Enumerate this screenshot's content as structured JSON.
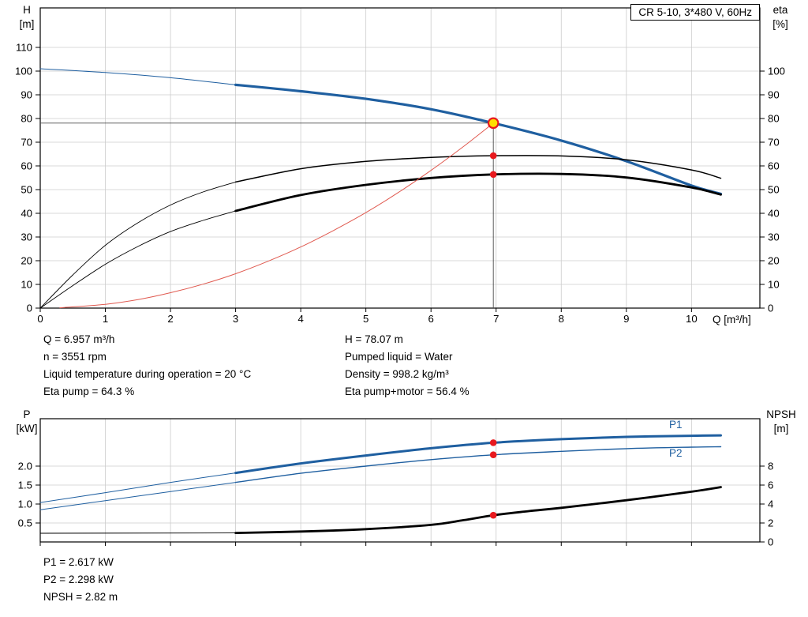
{
  "axis_labels": {
    "h": "H",
    "h_unit": "[m]",
    "eta": "eta",
    "eta_unit": "[%]",
    "q": "Q [m³/h]",
    "p": "P",
    "p_unit": "[kW]",
    "npsh": "NPSH",
    "npsh_unit": "[m]"
  },
  "curve_labels": {
    "p1": "P1",
    "p2": "P2"
  },
  "info_top": {
    "left": [
      "Q = 6.957 m³/h",
      "n = 3551 rpm",
      "Liquid temperature during operation = 20 °C",
      "Eta pump = 64.3 %"
    ],
    "right": [
      "H = 78.07 m",
      "Pumped liquid = Water",
      "Density = 998.2 kg/m³",
      "Eta pump+motor = 56.4 %"
    ]
  },
  "info_bottom": [
    "P1 = 2.617 kW",
    "P2 = 2.298 kW",
    "NPSH = 2.82 m"
  ],
  "colors": {
    "blue": "#1f5fa0",
    "black": "#000000",
    "red_curve": "#e05a50",
    "dot": "#e8191e",
    "marker_fill": "#ffdf00",
    "marker_ring": "#e8191e",
    "grid": "#cccccc",
    "crosshair": "#4d4d4d"
  },
  "chart_data": [
    {
      "id": "top",
      "type": "line",
      "title": "CR 5-10, 3*480 V, 60Hz",
      "xlabel": "Q [m³/h]",
      "left_axis_label": "H [m]",
      "right_axis_label": "eta [%]",
      "xlim": [
        0,
        11.05
      ],
      "left_lim": [
        0,
        126.7
      ],
      "right_lim": [
        0,
        126.7
      ],
      "show_x_labels": true,
      "x_ticks": [
        [
          0,
          "0"
        ],
        [
          1,
          "1"
        ],
        [
          2,
          "2"
        ],
        [
          3,
          "3"
        ],
        [
          4,
          "4"
        ],
        [
          5,
          "5"
        ],
        [
          6,
          "6"
        ],
        [
          7,
          "7"
        ],
        [
          8,
          "8"
        ],
        [
          9,
          "9"
        ],
        [
          10,
          "10"
        ]
      ],
      "left_ticks": [
        [
          0,
          "0"
        ],
        [
          10,
          "10"
        ],
        [
          20,
          "20"
        ],
        [
          30,
          "30"
        ],
        [
          40,
          "40"
        ],
        [
          50,
          "50"
        ],
        [
          60,
          "60"
        ],
        [
          70,
          "70"
        ],
        [
          80,
          "80"
        ],
        [
          90,
          "90"
        ],
        [
          100,
          "100"
        ],
        [
          110,
          "110"
        ]
      ],
      "right_ticks": [
        [
          0,
          "0"
        ],
        [
          10,
          "10"
        ],
        [
          20,
          "20"
        ],
        [
          30,
          "30"
        ],
        [
          40,
          "40"
        ],
        [
          50,
          "50"
        ],
        [
          60,
          "60"
        ],
        [
          70,
          "70"
        ],
        [
          80,
          "80"
        ],
        [
          90,
          "90"
        ],
        [
          100,
          "100"
        ]
      ],
      "series": [
        {
          "name": "head-curve-lead-in",
          "color": "#1f5fa0",
          "width": 1,
          "axis": "left",
          "points": [
            [
              0,
              101
            ],
            [
              1,
              99.4
            ],
            [
              2,
              97.2
            ],
            [
              3,
              94.2
            ]
          ]
        },
        {
          "name": "head-curve",
          "color": "#1f5fa0",
          "width": 3.2,
          "axis": "left",
          "points": [
            [
              3,
              94.2
            ],
            [
              4,
              91.5
            ],
            [
              5,
              88.3
            ],
            [
              6,
              83.9
            ],
            [
              6.957,
              78.07
            ],
            [
              8,
              70.7
            ],
            [
              9,
              62
            ],
            [
              10,
              51.7
            ],
            [
              10.45,
              48.2
            ]
          ]
        },
        {
          "name": "eta-pump-lead-in",
          "color": "#000000",
          "width": 0.9,
          "axis": "left",
          "points": [
            [
              0,
              0
            ],
            [
              0.5,
              14
            ],
            [
              1,
              26.5
            ],
            [
              1.5,
              36
            ],
            [
              2,
              43.5
            ],
            [
              2.5,
              49
            ],
            [
              3,
              53.2
            ]
          ]
        },
        {
          "name": "eta-pump-curve",
          "color": "#000000",
          "width": 1.5,
          "axis": "left",
          "points": [
            [
              3,
              53.2
            ],
            [
              4,
              58.8
            ],
            [
              5,
              61.9
            ],
            [
              6,
              63.6
            ],
            [
              6.957,
              64.3
            ],
            [
              8,
              64.2
            ],
            [
              9,
              62.6
            ],
            [
              10,
              58.3
            ],
            [
              10.45,
              54.8
            ]
          ]
        },
        {
          "name": "eta-pump-motor-lead-in",
          "color": "#000000",
          "width": 0.9,
          "axis": "left",
          "points": [
            [
              0,
              0
            ],
            [
              0.5,
              9.5
            ],
            [
              1,
              18.5
            ],
            [
              1.5,
              26
            ],
            [
              2,
              32.3
            ],
            [
              2.5,
              37
            ],
            [
              3,
              41
            ]
          ]
        },
        {
          "name": "eta-pump-motor-curve",
          "color": "#000000",
          "width": 2.8,
          "axis": "left",
          "points": [
            [
              3,
              41
            ],
            [
              4,
              47.7
            ],
            [
              5,
              52
            ],
            [
              6,
              54.9
            ],
            [
              6.957,
              56.4
            ],
            [
              8,
              56.6
            ],
            [
              9,
              55.1
            ],
            [
              10,
              50.9
            ],
            [
              10.45,
              47.9
            ]
          ]
        },
        {
          "name": "system-curve",
          "color": "#e05a50",
          "width": 1,
          "axis": "left",
          "points": [
            [
              0.3,
              0.15
            ],
            [
              1,
              1.6
            ],
            [
              1.5,
              3.6
            ],
            [
              2,
              6.5
            ],
            [
              2.5,
              10.1
            ],
            [
              3,
              14.5
            ],
            [
              3.5,
              19.8
            ],
            [
              4,
              25.8
            ],
            [
              4.5,
              32.7
            ],
            [
              5,
              40.3
            ],
            [
              5.5,
              48.8
            ],
            [
              6,
              58.1
            ],
            [
              6.5,
              68.2
            ],
            [
              6.957,
              78.07
            ]
          ]
        }
      ],
      "crosshair": {
        "q": 6.957,
        "value": 78.07,
        "axis": "left"
      },
      "markers": [
        {
          "type": "duty",
          "q": 6.957,
          "value": 78.07,
          "axis": "left",
          "name": "duty-point-marker"
        },
        {
          "type": "dot",
          "q": 6.957,
          "value": 64.3,
          "axis": "left",
          "name": "eta-pump-point"
        },
        {
          "type": "dot",
          "q": 6.957,
          "value": 56.4,
          "axis": "left",
          "name": "eta-pump-motor-point"
        }
      ]
    },
    {
      "id": "bottom",
      "type": "line",
      "title": "",
      "xlabel": "",
      "left_axis_label": "P [kW]",
      "right_axis_label": "NPSH [m]",
      "xlim": [
        0,
        11.05
      ],
      "left_lim": [
        0,
        3.25
      ],
      "right_lim": [
        0,
        13
      ],
      "show_x_labels": false,
      "x_ticks": [
        [
          0,
          ""
        ],
        [
          1,
          ""
        ],
        [
          2,
          ""
        ],
        [
          3,
          ""
        ],
        [
          4,
          ""
        ],
        [
          5,
          ""
        ],
        [
          6,
          ""
        ],
        [
          7,
          ""
        ],
        [
          8,
          ""
        ],
        [
          9,
          ""
        ],
        [
          10,
          ""
        ]
      ],
      "left_ticks": [
        [
          0.5,
          "0.5"
        ],
        [
          1,
          "1.0"
        ],
        [
          1.5,
          "1.5"
        ],
        [
          2,
          "2.0"
        ]
      ],
      "right_ticks": [
        [
          0,
          "0"
        ],
        [
          2,
          "2"
        ],
        [
          4,
          "4"
        ],
        [
          6,
          "6"
        ],
        [
          8,
          "8"
        ]
      ],
      "series": [
        {
          "name": "p1-curve-lead-in",
          "color": "#1f5fa0",
          "width": 1,
          "axis": "left",
          "points": [
            [
              0,
              1.04
            ],
            [
              1,
              1.3
            ],
            [
              2,
              1.57
            ],
            [
              3,
              1.82
            ]
          ]
        },
        {
          "name": "p1-curve",
          "color": "#1f5fa0",
          "width": 3,
          "axis": "left",
          "points": [
            [
              3,
              1.82
            ],
            [
              4,
              2.07
            ],
            [
              5,
              2.28
            ],
            [
              6,
              2.47
            ],
            [
              6.957,
              2.617
            ],
            [
              8,
              2.71
            ],
            [
              9,
              2.77
            ],
            [
              10,
              2.8
            ],
            [
              10.45,
              2.81
            ]
          ]
        },
        {
          "name": "p2-curve-lead-in",
          "color": "#1f5fa0",
          "width": 1,
          "axis": "left",
          "points": [
            [
              0,
              0.85
            ],
            [
              1,
              1.09
            ],
            [
              2,
              1.33
            ],
            [
              3,
              1.57
            ]
          ]
        },
        {
          "name": "p2-curve",
          "color": "#1f5fa0",
          "width": 1.4,
          "axis": "left",
          "points": [
            [
              3,
              1.57
            ],
            [
              4,
              1.81
            ],
            [
              5,
              2.0
            ],
            [
              6,
              2.17
            ],
            [
              6.957,
              2.298
            ],
            [
              8,
              2.39
            ],
            [
              9,
              2.46
            ],
            [
              10,
              2.5
            ],
            [
              10.45,
              2.51
            ]
          ]
        },
        {
          "name": "npsh-curve-lead-in",
          "color": "#000000",
          "width": 0.9,
          "axis": "right",
          "points": [
            [
              0,
              0.92
            ],
            [
              3,
              0.95
            ]
          ]
        },
        {
          "name": "npsh-curve",
          "color": "#000000",
          "width": 2.8,
          "axis": "right",
          "points": [
            [
              3,
              0.95
            ],
            [
              4,
              1.1
            ],
            [
              5,
              1.35
            ],
            [
              6,
              1.8
            ],
            [
              6.5,
              2.3
            ],
            [
              6.957,
              2.82
            ],
            [
              7.5,
              3.25
            ],
            [
              8,
              3.6
            ],
            [
              9,
              4.4
            ],
            [
              10,
              5.3
            ],
            [
              10.45,
              5.78
            ]
          ]
        }
      ],
      "crosshair": null,
      "markers": [
        {
          "type": "dot",
          "q": 6.957,
          "value": 2.617,
          "axis": "left",
          "name": "p1-point"
        },
        {
          "type": "dot",
          "q": 6.957,
          "value": 2.298,
          "axis": "left",
          "name": "p2-point"
        },
        {
          "type": "dot",
          "q": 6.957,
          "value": 2.82,
          "axis": "right",
          "name": "npsh-point"
        }
      ]
    }
  ]
}
